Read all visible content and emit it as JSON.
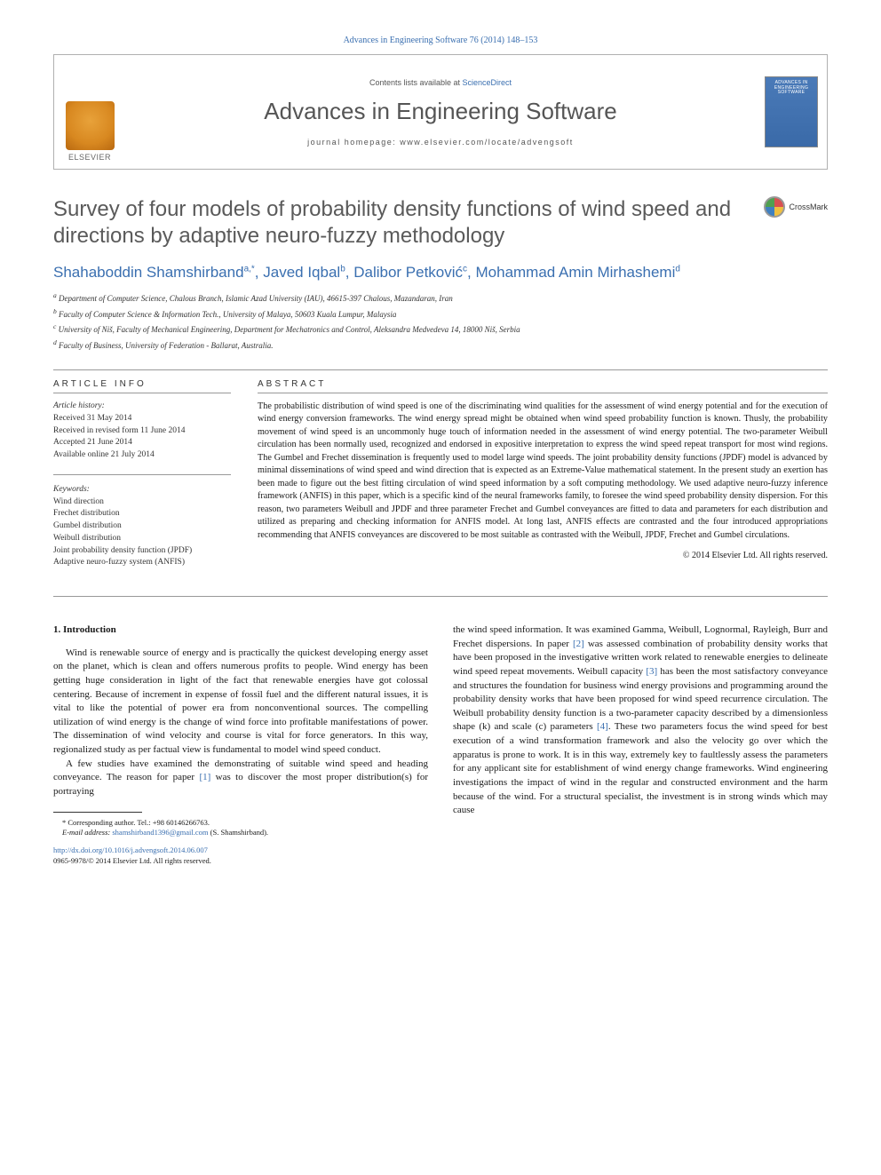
{
  "citation": "Advances in Engineering Software 76 (2014) 148–153",
  "header": {
    "contents_prefix": "Contents lists available at ",
    "contents_link": "ScienceDirect",
    "journal_name": "Advances in Engineering Software",
    "homepage_prefix": "journal homepage: ",
    "homepage_url": "www.elsevier.com/locate/advengsoft",
    "elsevier_label": "ELSEVIER",
    "cover_line1": "ADVANCES IN",
    "cover_line2": "ENGINEERING",
    "cover_line3": "SOFTWARE"
  },
  "title": "Survey of four models of probability density functions of wind speed and directions by adaptive neuro-fuzzy methodology",
  "crossmark_label": "CrossMark",
  "authors_html": "Shahaboddin Shamshirband",
  "authors": {
    "a1": "Shahaboddin Shamshirband",
    "a1_sup": "a,*",
    "a2": ", Javed Iqbal",
    "a2_sup": "b",
    "a3": ", Dalibor Petković",
    "a3_sup": "c",
    "a4": ", Mohammad Amin Mirhashemi",
    "a4_sup": "d"
  },
  "affiliations": {
    "a": "Department of Computer Science, Chalous Branch, Islamic Azad University (IAU), 46615-397 Chalous, Mazandaran, Iran",
    "b": "Faculty of Computer Science & Information Tech., University of Malaya, 50603 Kuala Lumpur, Malaysia",
    "c": "University of Niš, Faculty of Mechanical Engineering, Department for Mechatronics and Control, Aleksandra Medvedeva 14, 18000 Niš, Serbia",
    "d": "Faculty of Business, University of Federation - Ballarat, Australia."
  },
  "article_info": {
    "header": "ARTICLE INFO",
    "history_label": "Article history:",
    "received": "Received 31 May 2014",
    "revised": "Received in revised form 11 June 2014",
    "accepted": "Accepted 21 June 2014",
    "online": "Available online 21 July 2014",
    "keywords_label": "Keywords:",
    "keywords": [
      "Wind direction",
      "Frechet distribution",
      "Gumbel distribution",
      "Weibull distribution",
      "Joint probability density function (JPDF)",
      "Adaptive neuro-fuzzy system (ANFIS)"
    ]
  },
  "abstract": {
    "header": "ABSTRACT",
    "text": "The probabilistic distribution of wind speed is one of the discriminating wind qualities for the assessment of wind energy potential and for the execution of wind energy conversion frameworks. The wind energy spread might be obtained when wind speed probability function is known. Thusly, the probability movement of wind speed is an uncommonly huge touch of information needed in the assessment of wind energy potential. The two-parameter Weibull circulation has been normally used, recognized and endorsed in expositive interpretation to express the wind speed repeat transport for most wind regions. The Gumbel and Frechet dissemination is frequently used to model large wind speeds. The joint probability density functions (JPDF) model is advanced by minimal disseminations of wind speed and wind direction that is expected as an Extreme-Value mathematical statement. In the present study an exertion has been made to figure out the best fitting circulation of wind speed information by a soft computing methodology. We used adaptive neuro-fuzzy inference framework (ANFIS) in this paper, which is a specific kind of the neural frameworks family, to foresee the wind speed probability density dispersion. For this reason, two parameters Weibull and JPDF and three parameter Frechet and Gumbel conveyances are fitted to data and parameters for each distribution and utilized as preparing and checking information for ANFIS model. At long last, ANFIS effects are contrasted and the four introduced appropriations recommending that ANFIS conveyances are discovered to be most suitable as contrasted with the Weibull, JPDF, Frechet and Gumbel circulations.",
    "copyright": "© 2014 Elsevier Ltd. All rights reserved."
  },
  "body": {
    "section_head": "1. Introduction",
    "p1": "Wind is renewable source of energy and is practically the quickest developing energy asset on the planet, which is clean and offers numerous profits to people. Wind energy has been getting huge consideration in light of the fact that renewable energies have got colossal centering. Because of increment in expense of fossil fuel and the different natural issues, it is vital to like the potential of power era from nonconventional sources. The compelling utilization of wind energy is the change of wind force into profitable manifestations of power. The dissemination of wind velocity and course is vital for force generators. In this way, regionalized study as per factual view is fundamental to model wind speed conduct.",
    "p2a": "A few studies have examined the demonstrating of suitable wind speed and heading conveyance. The reason for paper ",
    "p2_ref": "[1]",
    "p2b": " was to discover the most proper distribution(s) for portraying",
    "p3a": "the wind speed information. It was examined Gamma, Weibull, Lognormal, Rayleigh, Burr and Frechet dispersions. In paper ",
    "p3_ref1": "[2]",
    "p3b": " was assessed combination of probability density works that have been proposed in the investigative written work related to renewable energies to delineate wind speed repeat movements. Weibull capacity ",
    "p3_ref2": "[3]",
    "p3c": " has been the most satisfactory conveyance and structures the foundation for business wind energy provisions and programming around the probability density works that have been proposed for wind speed recurrence circulation. The Weibull probability density function is a two-parameter capacity described by a dimensionless shape (k) and scale (c) parameters ",
    "p3_ref3": "[4]",
    "p3d": ". These two parameters focus the wind speed for best execution of a wind transformation framework and also the velocity go over which the apparatus is prone to work. It is in this way, extremely key to faultlessly assess the parameters for any applicant site for establishment of wind energy change frameworks. Wind engineering investigations the impact of wind in the regular and constructed environment and the harm because of the wind. For a structural specialist, the investment is in strong winds which may cause"
  },
  "footnote": {
    "corr": "* Corresponding author. Tel.: +98 60146266763.",
    "email_label": "E-mail address: ",
    "email": "shamshirband1396@gmail.com",
    "email_suffix": " (S. Shamshirband)."
  },
  "doi": {
    "url": "http://dx.doi.org/10.1016/j.advengsoft.2014.06.007",
    "issn": "0965-9978/© 2014 Elsevier Ltd. All rights reserved."
  },
  "colors": {
    "link": "#3a6fb0",
    "text": "#1a1a1a",
    "gray_text": "#555555",
    "border": "#999999"
  }
}
